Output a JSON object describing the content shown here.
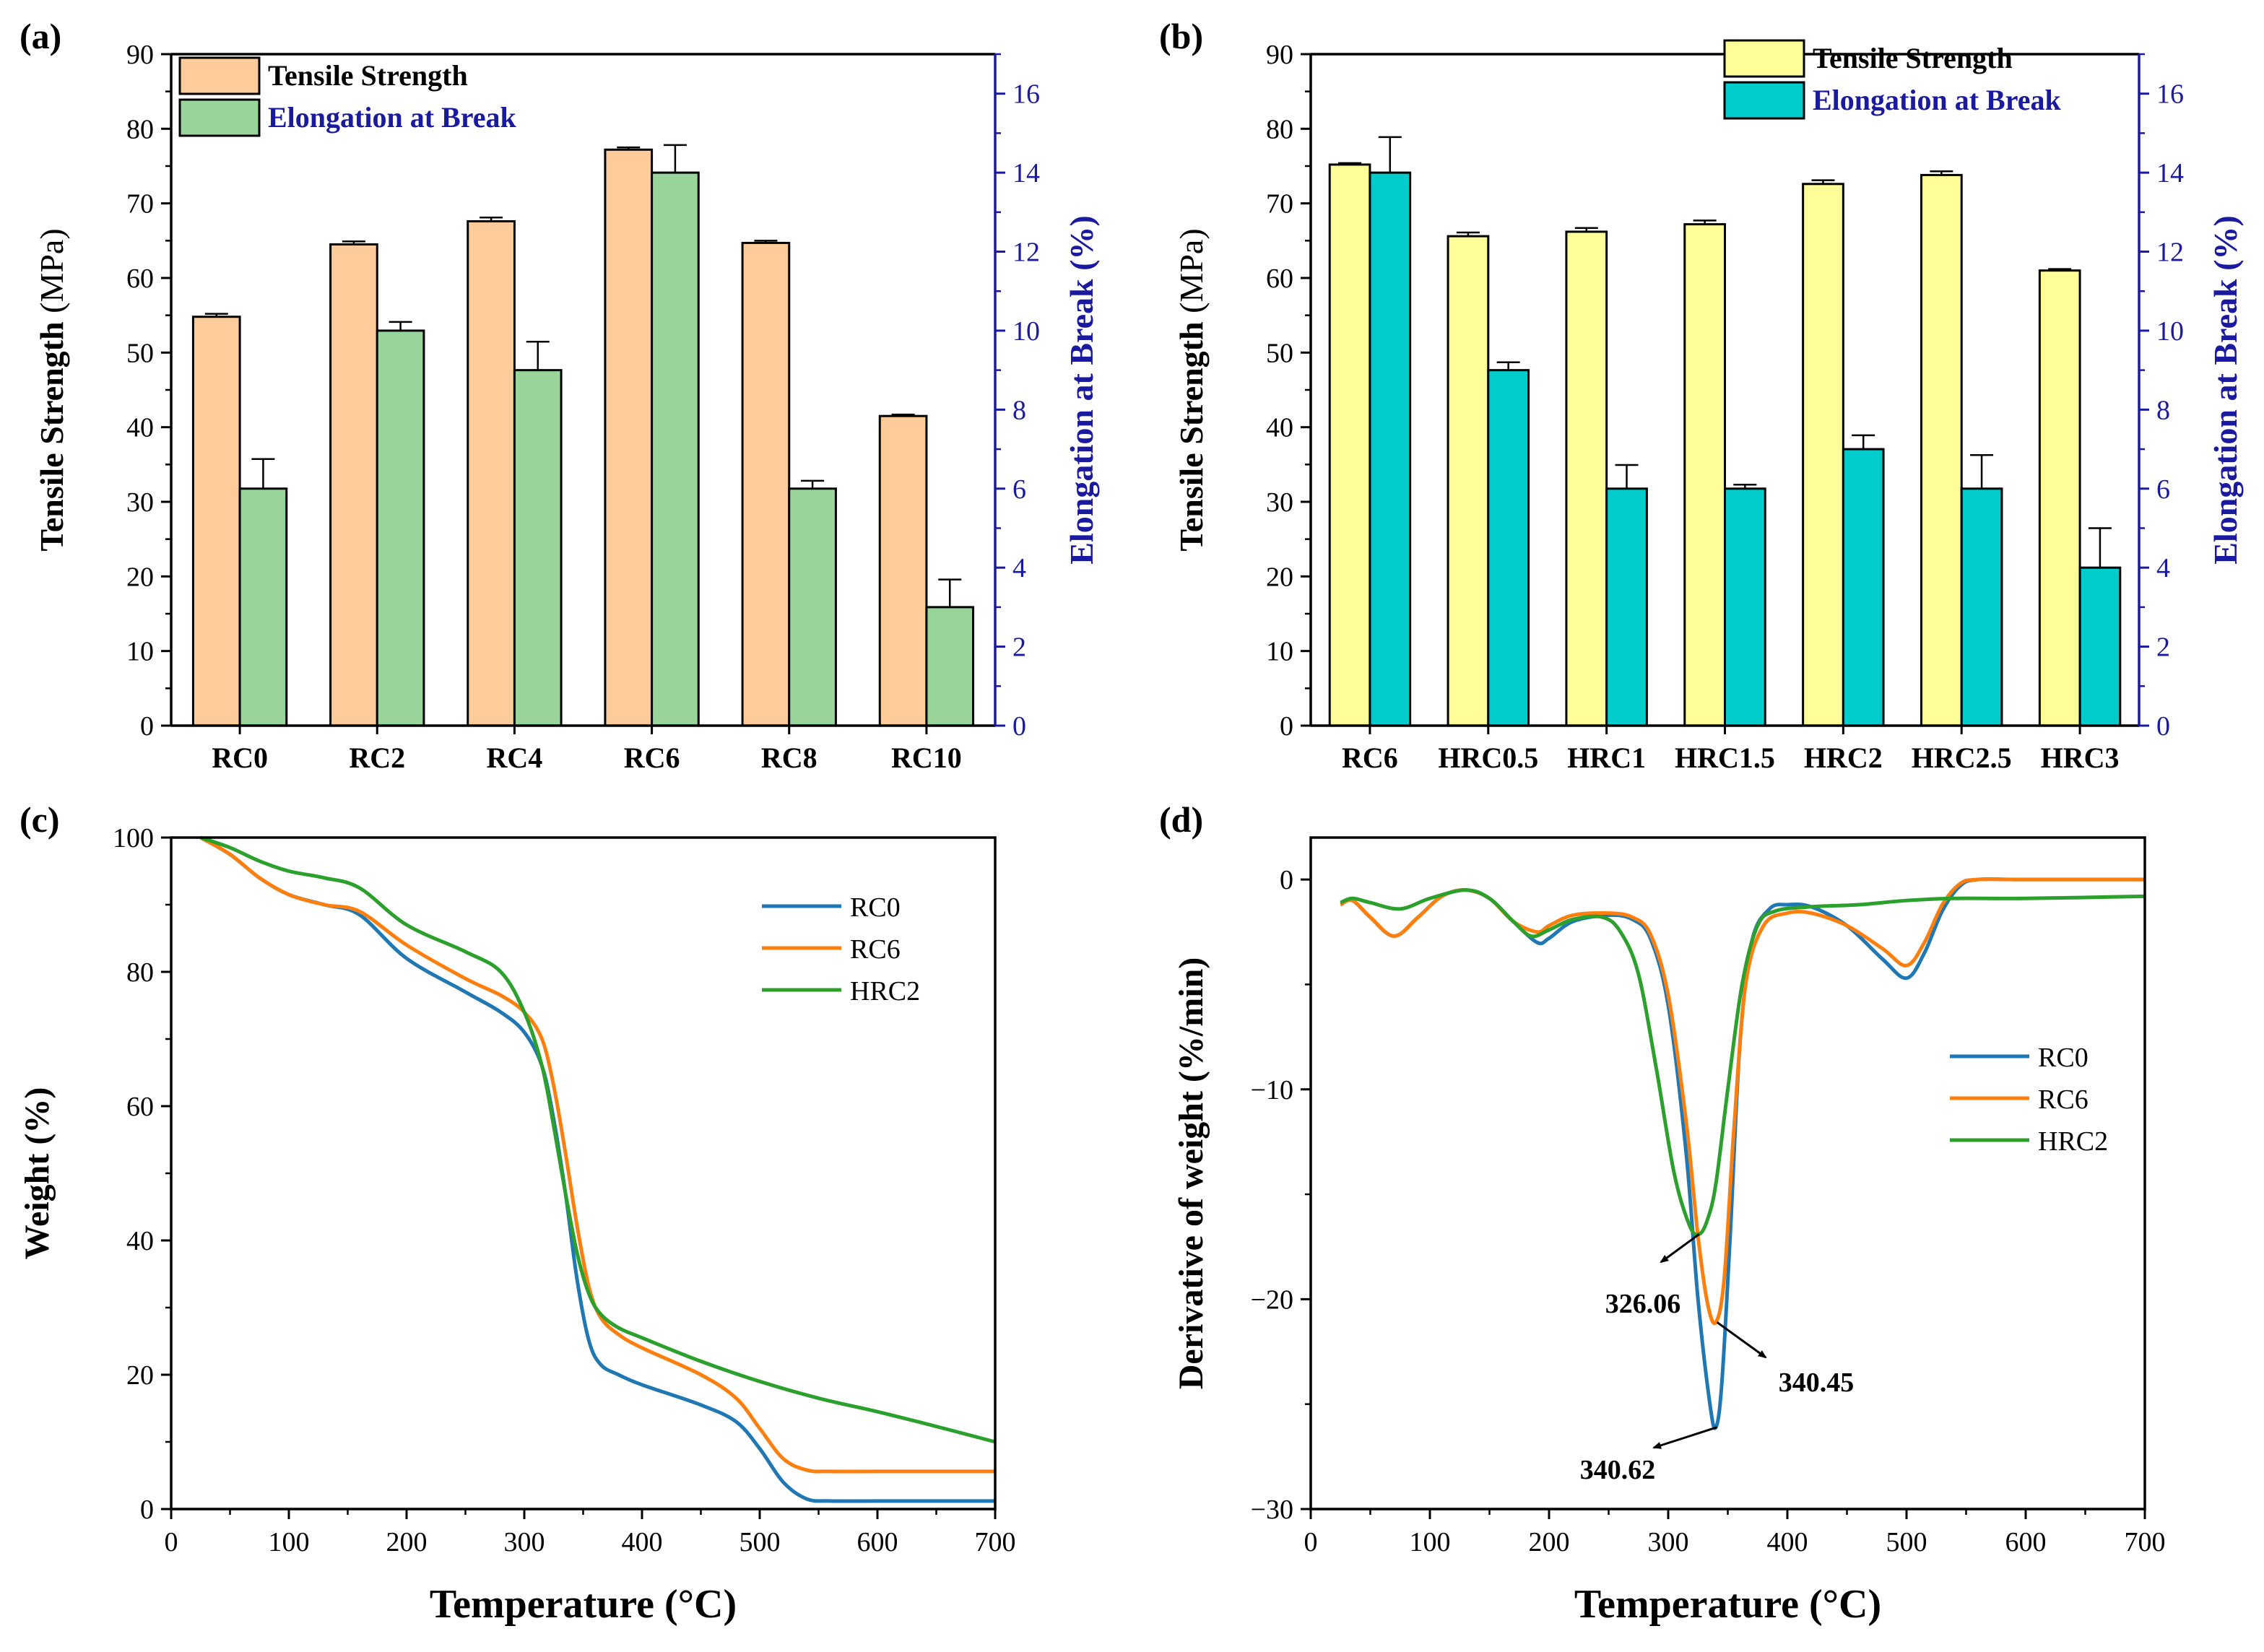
{
  "figure": {
    "background": "#ffffff"
  },
  "chart_data": [
    {
      "id": "a",
      "panel_label": "(a)",
      "type": "bar",
      "categories": [
        "RC0",
        "RC2",
        "RC4",
        "RC6",
        "RC8",
        "RC10"
      ],
      "ylabel": "Tensile Strength (MPa)",
      "ylabel_main": "Tensile Strength",
      "ylabel_unit": "(MPa)",
      "ylabel2": "Elongation at Break (%)",
      "ylim": [
        0,
        90
      ],
      "yticks": [
        0,
        10,
        20,
        30,
        40,
        50,
        60,
        70,
        80,
        90
      ],
      "y2lim": [
        0,
        17
      ],
      "y2ticks": [
        0,
        2,
        4,
        6,
        8,
        10,
        12,
        14,
        16
      ],
      "series": [
        {
          "name": "Tensile Strength",
          "axis": "left",
          "color": "#fdcc9a",
          "legend_text_color": "#000000",
          "values": [
            54.8,
            64.5,
            67.6,
            77.2,
            64.7,
            41.5
          ],
          "errors": [
            0.4,
            0.4,
            0.5,
            0.3,
            0.3,
            0.2
          ]
        },
        {
          "name": "Elongation at Break",
          "axis": "right",
          "color": "#99d59a",
          "legend_text_color": "#1a1aa0",
          "values": [
            6.0,
            10.0,
            9.0,
            14.0,
            6.0,
            3.0
          ],
          "errors": [
            0.75,
            0.22,
            0.72,
            0.7,
            0.2,
            0.7
          ]
        }
      ],
      "legend_position": "top-left",
      "right_axis_color": "#1a1aa0"
    },
    {
      "id": "b",
      "panel_label": "(b)",
      "type": "bar",
      "categories": [
        "RC6",
        "HRC0.5",
        "HRC1",
        "HRC1.5",
        "HRC2",
        "HRC2.5",
        "HRC3"
      ],
      "ylabel": "Tensile Strength (MPa)",
      "ylabel_main": "Tensile Strength",
      "ylabel_unit": "(MPa)",
      "ylabel2": "Elongation at Break (%)",
      "ylim": [
        0,
        90
      ],
      "yticks": [
        0,
        10,
        20,
        30,
        40,
        50,
        60,
        70,
        80,
        90
      ],
      "y2lim": [
        0,
        17
      ],
      "y2ticks": [
        0,
        2,
        4,
        6,
        8,
        10,
        12,
        14,
        16
      ],
      "series": [
        {
          "name": "Tensile Strength",
          "axis": "left",
          "color": "#ffff9a",
          "legend_text_color": "#000000",
          "values": [
            75.2,
            65.6,
            66.2,
            67.2,
            72.6,
            73.8,
            61.0
          ],
          "errors": [
            0.2,
            0.5,
            0.5,
            0.5,
            0.5,
            0.5,
            0.2
          ]
        },
        {
          "name": "Elongation at Break",
          "axis": "right",
          "color": "#00cccc",
          "legend_text_color": "#1a1aa0",
          "values": [
            14.0,
            9.0,
            6.0,
            6.0,
            7.0,
            6.0,
            4.0
          ],
          "errors": [
            0.9,
            0.2,
            0.6,
            0.1,
            0.35,
            0.85,
            1.0
          ]
        }
      ],
      "legend_position": "top-right",
      "right_axis_color": "#1a1aa0"
    },
    {
      "id": "c",
      "panel_label": "(c)",
      "type": "line",
      "xlabel": "Temperature (°C)",
      "ylabel": "Weight (%)",
      "xlim": [
        0,
        700
      ],
      "xticks": [
        0,
        100,
        200,
        300,
        400,
        500,
        600,
        700
      ],
      "ylim": [
        0,
        100
      ],
      "yticks": [
        0,
        20,
        40,
        60,
        80,
        100
      ],
      "legend_position": "top-right",
      "series": [
        {
          "name": "RC0",
          "color": "#1f77b4",
          "x": [
            25,
            50,
            75,
            100,
            130,
            160,
            200,
            250,
            280,
            300,
            315,
            325,
            335,
            345,
            355,
            365,
            380,
            400,
            450,
            480,
            500,
            520,
            540,
            560,
            600,
            650,
            700
          ],
          "y": [
            100,
            97.5,
            94,
            91.5,
            90,
            88.5,
            82,
            77,
            74,
            71,
            66,
            58,
            47,
            34,
            25,
            21.5,
            20,
            18.5,
            15.5,
            13,
            9,
            4,
            1.5,
            1.2,
            1.2,
            1.2,
            1.2
          ]
        },
        {
          "name": "RC6",
          "color": "#ff7f0e",
          "x": [
            25,
            50,
            75,
            100,
            130,
            160,
            200,
            250,
            280,
            300,
            315,
            325,
            335,
            345,
            355,
            365,
            380,
            400,
            450,
            480,
            500,
            520,
            540,
            560,
            600,
            650,
            700
          ],
          "y": [
            100,
            97.5,
            94,
            91.5,
            90,
            89,
            84,
            79,
            76.5,
            74,
            70,
            63,
            53,
            42,
            33,
            28.5,
            26,
            24,
            20,
            16.5,
            12,
            7.5,
            5.8,
            5.6,
            5.6,
            5.6,
            5.6
          ]
        },
        {
          "name": "HRC2",
          "color": "#2ca02c",
          "x": [
            25,
            50,
            75,
            100,
            130,
            160,
            200,
            250,
            280,
            300,
            315,
            325,
            335,
            345,
            355,
            365,
            380,
            400,
            450,
            500,
            550,
            600,
            650,
            700
          ],
          "y": [
            100,
            98.5,
            96.5,
            95,
            94,
            92.5,
            87,
            83,
            80,
            74,
            66,
            57,
            47,
            38,
            32,
            29,
            27,
            25.5,
            22,
            19,
            16.5,
            14.5,
            12.3,
            10
          ]
        }
      ]
    },
    {
      "id": "d",
      "panel_label": "(d)",
      "type": "line",
      "xlabel": "Temperature (°C)",
      "ylabel": "Derivative of weight (%/min)",
      "xlim": [
        0,
        700
      ],
      "xticks": [
        0,
        100,
        200,
        300,
        400,
        500,
        600,
        700
      ],
      "ylim": [
        -30,
        2
      ],
      "yticks": [
        -30,
        -20,
        -10,
        0
      ],
      "ytick_labels": [
        "−30",
        "−20",
        "−10",
        "0"
      ],
      "legend_position": "center-right",
      "series": [
        {
          "name": "RC0",
          "color": "#1f77b4",
          "x": [
            25,
            35,
            50,
            70,
            90,
            110,
            130,
            150,
            170,
            190,
            200,
            220,
            250,
            270,
            285,
            300,
            315,
            325,
            335,
            340,
            345,
            352,
            360,
            370,
            385,
            400,
            420,
            450,
            480,
            500,
            515,
            530,
            545,
            560,
            600,
            700
          ],
          "y": [
            -1.2,
            -1.0,
            -1.8,
            -2.7,
            -1.8,
            -0.8,
            -0.5,
            -0.9,
            -2.0,
            -3.0,
            -2.8,
            -2.0,
            -1.7,
            -1.9,
            -2.8,
            -6,
            -13,
            -20,
            -25,
            -26.1,
            -24,
            -17,
            -8,
            -3,
            -1.4,
            -1.2,
            -1.3,
            -2.2,
            -3.8,
            -4.7,
            -3.5,
            -1.5,
            -0.3,
            0,
            0,
            0
          ]
        },
        {
          "name": "RC6",
          "color": "#ff7f0e",
          "x": [
            25,
            35,
            50,
            70,
            90,
            110,
            130,
            150,
            170,
            190,
            200,
            220,
            250,
            270,
            285,
            300,
            315,
            325,
            333,
            340,
            347,
            355,
            365,
            380,
            400,
            420,
            450,
            480,
            500,
            515,
            530,
            545,
            560,
            600,
            700
          ],
          "y": [
            -1.2,
            -1.0,
            -1.8,
            -2.7,
            -1.8,
            -0.8,
            -0.5,
            -0.9,
            -2.0,
            -2.5,
            -2.2,
            -1.7,
            -1.6,
            -1.8,
            -2.6,
            -5.5,
            -11.5,
            -17,
            -20.2,
            -21.1,
            -19,
            -12,
            -5,
            -2.2,
            -1.6,
            -1.6,
            -2.2,
            -3.3,
            -4.1,
            -3,
            -1.2,
            -0.2,
            0,
            0,
            0
          ]
        },
        {
          "name": "HRC2",
          "color": "#2ca02c",
          "x": [
            25,
            35,
            50,
            75,
            100,
            130,
            150,
            170,
            185,
            200,
            220,
            245,
            260,
            275,
            290,
            305,
            318,
            326,
            333,
            340,
            350,
            362,
            375,
            390,
            420,
            460,
            500,
            540,
            600,
            700
          ],
          "y": [
            -1.1,
            -0.9,
            -1.1,
            -1.4,
            -0.9,
            -0.5,
            -0.9,
            -2.0,
            -2.7,
            -2.4,
            -1.9,
            -1.8,
            -2.5,
            -4.5,
            -9,
            -14,
            -16.5,
            -16.9,
            -16.2,
            -14.5,
            -10,
            -5,
            -2.2,
            -1.5,
            -1.3,
            -1.2,
            -1.0,
            -0.9,
            -0.9,
            -0.8
          ]
        }
      ],
      "annotations": [
        {
          "text": "326.06",
          "point": [
            326,
            -16.9
          ]
        },
        {
          "text": "340.45",
          "point": [
            341,
            -21.1
          ]
        },
        {
          "text": "340.62",
          "point": [
            341,
            -26.1
          ]
        }
      ]
    }
  ]
}
